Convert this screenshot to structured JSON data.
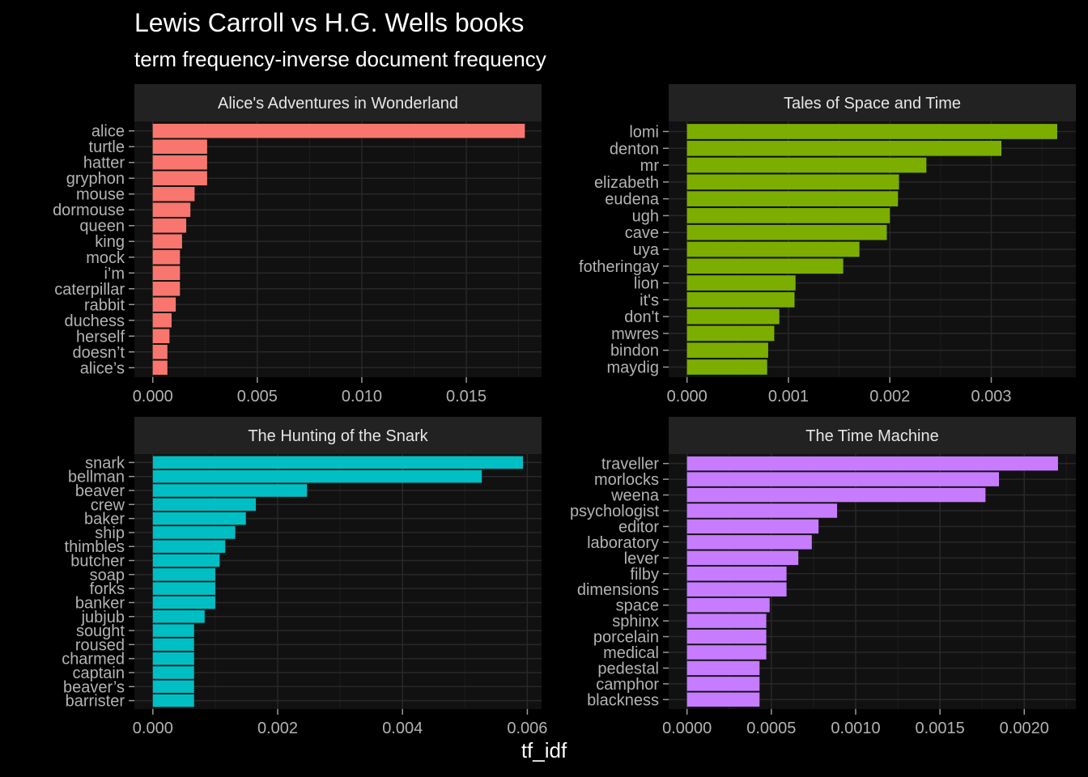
{
  "chart_data": {
    "type": "bar",
    "orientation": "horizontal",
    "title": "Lewis Carroll vs H.G. Wells books",
    "subtitle": "term frequency-inverse document frequency",
    "xlabel": "tf_idf",
    "ylabel": "",
    "grid": true,
    "legend": "none",
    "panels": [
      {
        "title": "Alice's Adventures in Wonderland",
        "color": "#F8766D",
        "xlim": [
          -0.00088,
          0.0186
        ],
        "ticks": [
          0,
          0.005,
          0.01,
          0.015
        ],
        "tick_labels": [
          "0.000",
          "0.005",
          "0.010",
          "0.015"
        ],
        "categories": [
          "alice",
          "turtle",
          "hatter",
          "gryphon",
          "mouse",
          "dormouse",
          "queen",
          "king",
          "mock",
          "i’m",
          "caterpillar",
          "rabbit",
          "duchess",
          "herself",
          "doesn’t",
          "alice’s"
        ],
        "values": [
          0.0178,
          0.0026,
          0.0026,
          0.0026,
          0.002,
          0.0018,
          0.0016,
          0.0014,
          0.0013,
          0.0013,
          0.0013,
          0.0011,
          0.0009,
          0.0008,
          0.0007,
          0.0007
        ]
      },
      {
        "title": "Tales of Space and Time",
        "color": "#7CAE00",
        "xlim": [
          -0.000181,
          0.003834
        ],
        "ticks": [
          0,
          0.001,
          0.002,
          0.003
        ],
        "tick_labels": [
          "0.000",
          "0.001",
          "0.002",
          "0.003"
        ],
        "categories": [
          "lomi",
          "denton",
          "mr",
          "elizabeth",
          "eudena",
          "ugh",
          "cave",
          "uya",
          "fotheringay",
          "lion",
          "it's",
          "don't",
          "mwres",
          "bindon",
          "maydig"
        ],
        "values": [
          0.00365,
          0.0031,
          0.00236,
          0.00209,
          0.00208,
          0.002,
          0.00197,
          0.0017,
          0.00154,
          0.00107,
          0.00106,
          0.00091,
          0.00086,
          0.0008,
          0.00079
        ]
      },
      {
        "title": "The Hunting of the Snark",
        "color": "#00BFC4",
        "xlim": [
          -0.000296,
          0.006228
        ],
        "ticks": [
          0,
          0.002,
          0.004,
          0.006
        ],
        "tick_labels": [
          "0.000",
          "0.002",
          "0.004",
          "0.006"
        ],
        "categories": [
          "snark",
          "bellman",
          "beaver",
          "crew",
          "baker",
          "ship",
          "thimbles",
          "butcher",
          "soap",
          "forks",
          "banker",
          "jubjub",
          "sought",
          "roused",
          "charmed",
          "captain",
          "beaver’s",
          "barrister"
        ],
        "values": [
          0.00593,
          0.00527,
          0.00247,
          0.00165,
          0.00149,
          0.00132,
          0.00116,
          0.00107,
          0.001,
          0.001,
          0.001,
          0.00083,
          0.00066,
          0.00066,
          0.00066,
          0.00066,
          0.00066,
          0.00066
        ]
      },
      {
        "title": "The Time Machine",
        "color": "#C77CFF",
        "xlim": [
          -0.000109,
          0.002306
        ],
        "ticks": [
          0,
          0.0005,
          0.001,
          0.0015,
          0.002
        ],
        "tick_labels": [
          "0.0000",
          "0.0005",
          "0.0010",
          "0.0015",
          "0.0020"
        ],
        "categories": [
          "traveller",
          "morlocks",
          "weena",
          "psychologist",
          "editor",
          "laboratory",
          "lever",
          "filby",
          "dimensions",
          "space",
          "sphinx",
          "porcelain",
          "medical",
          "pedestal",
          "camphor",
          "blackness"
        ],
        "values": [
          0.0022,
          0.00185,
          0.00177,
          0.00089,
          0.00078,
          0.00074,
          0.00066,
          0.00059,
          0.00059,
          0.00049,
          0.00047,
          0.00047,
          0.00047,
          0.00043,
          0.00043,
          0.00043
        ]
      }
    ]
  }
}
